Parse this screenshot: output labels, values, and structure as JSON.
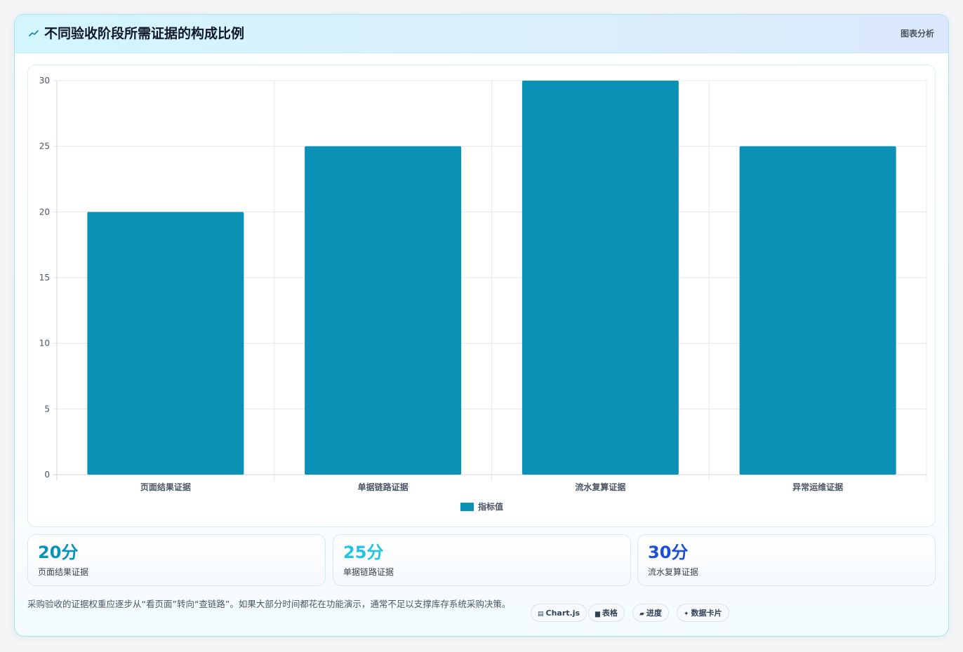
{
  "header": {
    "icon": "line-chart-icon",
    "title": "不同验收阶段所需证据的构成比例",
    "link": "图表分析"
  },
  "colors": {
    "bar": "#0a91b5",
    "grid": "#e5e7eb",
    "axis": "#d1d5db",
    "tick": "#4b5563",
    "stat_1": "#0a91b5",
    "stat_2": "#22c4e0",
    "stat_3": "#1d4ed8"
  },
  "chart_data": {
    "type": "bar",
    "categories": [
      "页面结果证据",
      "单据链路证据",
      "流水复算证据",
      "异常运维证据"
    ],
    "series": [
      {
        "name": "指标值",
        "values": [
          20,
          25,
          30,
          25
        ]
      }
    ],
    "title": "",
    "xlabel": "",
    "ylabel": "",
    "ylim": [
      0,
      30
    ],
    "yticks": [
      0,
      5,
      10,
      15,
      20,
      25,
      30
    ],
    "grid": true,
    "legend": "bottom-center"
  },
  "stats": [
    {
      "value": "20分",
      "label": "页面结果证据"
    },
    {
      "value": "25分",
      "label": "单据链路证据"
    },
    {
      "value": "30分",
      "label": "流水复算证据"
    }
  ],
  "footer": {
    "text": "采购验收的证据权重应逐步从“看页面”转向“查链路”。如果大部分时间都花在功能演示，通常不足以支撑库存系统采购决策。"
  },
  "tags": [
    {
      "icon": "▤",
      "icon_name": "chart-icon",
      "label": "Chart.js"
    },
    {
      "icon": "▆",
      "icon_name": "table-icon",
      "label": "表格"
    },
    {
      "icon": "▰",
      "icon_name": "progress-icon",
      "label": "进度"
    },
    {
      "icon": "✦",
      "icon_name": "sparkle-icon",
      "label": "数据卡片"
    }
  ]
}
